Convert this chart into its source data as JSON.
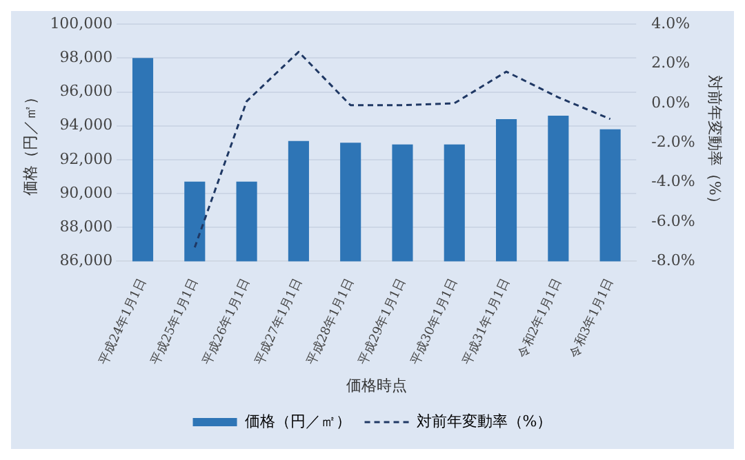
{
  "chart_data": {
    "type": "bar",
    "categories": [
      "平成24年1月1日",
      "平成25年1月1日",
      "平成26年1月1日",
      "平成27年1月1日",
      "平成28年1月1日",
      "平成29年1月1日",
      "平成30年1月1日",
      "平成31年1月1日",
      "令和2年1月1日",
      "令和3年1月1日"
    ],
    "xlabel": "価格時点",
    "ylabel": "価格（円／㎡）",
    "y2label": "対前年変動率（%）",
    "series": [
      {
        "name": "価格（円／㎡）",
        "color": "#2e75b6",
        "values": [
          98000,
          90700,
          90700,
          93100,
          93000,
          92900,
          92900,
          94400,
          94600,
          93800
        ]
      },
      {
        "name": "対前年変動率（%）",
        "type": "line",
        "axis": "y2",
        "color": "#1f3864",
        "line_style": "dashed",
        "marker": "none",
        "values": [
          null,
          -7.3,
          0.1,
          2.6,
          -0.1,
          -0.1,
          0.0,
          1.6,
          0.3,
          -0.8
        ]
      }
    ],
    "ylim": [
      86000,
      100000
    ],
    "yticks": [
      {
        "value": 86000,
        "label": "86,000"
      },
      {
        "value": 88000,
        "label": "88,000"
      },
      {
        "value": 90000,
        "label": "90,000"
      },
      {
        "value": 92000,
        "label": "92,000"
      },
      {
        "value": 94000,
        "label": "94,000"
      },
      {
        "value": 96000,
        "label": "96,000"
      },
      {
        "value": 98000,
        "label": "98,000"
      },
      {
        "value": 100000,
        "label": "100,000"
      }
    ],
    "y2lim": [
      -8,
      4
    ],
    "y2ticks": [
      {
        "value": -8,
        "label": "-8.0%"
      },
      {
        "value": -6,
        "label": "-6.0%"
      },
      {
        "value": -4,
        "label": "-4.0%"
      },
      {
        "value": -2,
        "label": "-2.0%"
      },
      {
        "value": 0,
        "label": "0.0%"
      },
      {
        "value": 2,
        "label": "2.0%"
      },
      {
        "value": 4,
        "label": "4.0%"
      }
    ],
    "grid": "y",
    "legend": "bottom"
  }
}
